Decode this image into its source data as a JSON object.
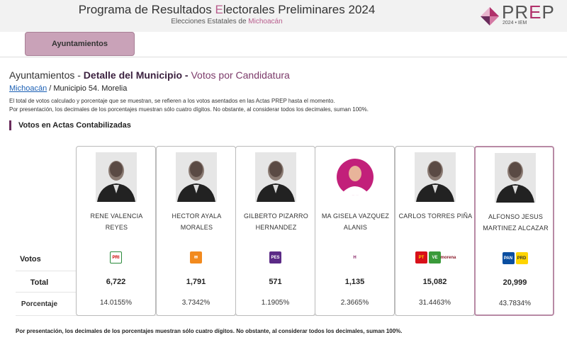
{
  "header": {
    "title_pre": "Programa de Resultados ",
    "title_accent": "E",
    "title_post": "lectorales Preliminares 2024",
    "subtitle_pre": "Elecciones Estatales de ",
    "subtitle_state": "Michoacán",
    "logo_pre": "PR",
    "logo_e": "E",
    "logo_post": "P",
    "logo_sub": "2024 • IEM"
  },
  "nav": {
    "tab_label": "Ayuntamientos"
  },
  "page": {
    "heading_pre": "Ayuntamientos - ",
    "heading_bold": "Detalle del Municipio - ",
    "heading_post": "Votos por Candidatura",
    "breadcrumb_link": "Michoacán",
    "breadcrumb_rest": " / Municipio 54. Morelia",
    "note_line1": "El total de votos calculado y porcentaje que se muestran, se refieren a los votos asentados en las Actas PREP hasta el momento.",
    "note_line2": "Por presentación, los decimales de los porcentajes muestran sólo cuatro dígitos. No obstante, al considerar todos los decimales, suman 100%.",
    "section_title": "Votos en Actas Contabilizadas",
    "row_votos": "Votos",
    "row_total": "Total",
    "row_pct": "Porcentaje",
    "footnote": "Por presentación, los decimales de los porcentajes muestran sólo cuatro dígitos. No obstante, al considerar todos los decimales, suman 100%."
  },
  "candidates": [
    {
      "name": "RENE VALENCIA REYES",
      "total": "6,722",
      "pct": "14.0155%",
      "photo": "male-photo",
      "parties": [
        "PRI"
      ]
    },
    {
      "name": "HECTOR AYALA MORALES",
      "total": "1,791",
      "pct": "3.7342%",
      "photo": "male-photo",
      "parties": [
        "MC"
      ]
    },
    {
      "name": "GILBERTO PIZARRO HERNANDEZ",
      "total": "571",
      "pct": "1.1905%",
      "photo": "male-photo",
      "parties": [
        "PES"
      ]
    },
    {
      "name": "MA GISELA VAZQUEZ ALANIS",
      "total": "1,135",
      "pct": "2.3665%",
      "photo": "placeholder-avatar",
      "parties": [
        "HM"
      ]
    },
    {
      "name": "CARLOS TORRES PIÑA",
      "total": "15,082",
      "pct": "31.4463%",
      "photo": "male-photo",
      "parties": [
        "PT",
        "PVEM",
        "morena"
      ]
    },
    {
      "name": "ALFONSO JESUS MARTINEZ ALCAZAR",
      "total": "20,999",
      "pct": "43.7834%",
      "photo": "male-photo",
      "parties": [
        "PAN",
        "PRD"
      ]
    }
  ],
  "colors": {
    "accent": "#b0306a",
    "tab": "#c9a2b8",
    "section_bar": "#6a2c5c"
  }
}
